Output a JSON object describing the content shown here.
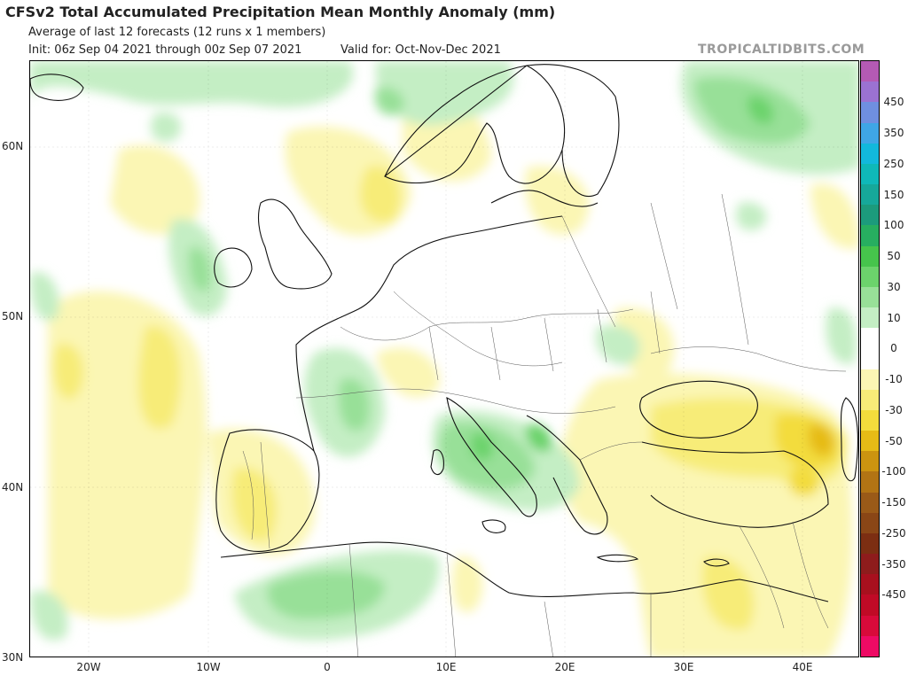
{
  "header": {
    "title": "CFSv2 Total Accumulated Precipitation Mean Monthly Anomaly (mm)",
    "subtitle": "Average of last 12 forecasts (12 runs x 1 members)",
    "init": "Init: 06z Sep 04 2021 through 00z Sep 07 2021",
    "valid": "Valid for: Oct-Nov-Dec 2021",
    "brand": "TROPICALTIDBITS.COM"
  },
  "axes": {
    "lat_labels": [
      "60N",
      "50N",
      "40N",
      "30N"
    ],
    "lon_labels": [
      "20W",
      "10W",
      "0",
      "10E",
      "20E",
      "30E",
      "40E"
    ]
  },
  "colorbar": {
    "labels": [
      "450",
      "350",
      "250",
      "150",
      "100",
      "50",
      "30",
      "10",
      "0",
      "-10",
      "-30",
      "-50",
      "-100",
      "-150",
      "-250",
      "-350",
      "-450"
    ],
    "colors": [
      "#b45ab4",
      "#9b72d2",
      "#6f8fe0",
      "#3fa6e6",
      "#12b8dc",
      "#0fb8b8",
      "#16a89a",
      "#1c9b7c",
      "#27ae60",
      "#46c44c",
      "#6cd36c",
      "#98e098",
      "#c4eec4",
      "#ffffff",
      "#ffffff",
      "#fbf6b4",
      "#f7ec78",
      "#f3dc3c",
      "#e6bb16",
      "#cc9410",
      "#b27414",
      "#9a5a18",
      "#8a4616",
      "#7c2e12",
      "#8e1c1c",
      "#a8101e",
      "#c00a26",
      "#d80a3a",
      "#ee0a64"
    ]
  }
}
